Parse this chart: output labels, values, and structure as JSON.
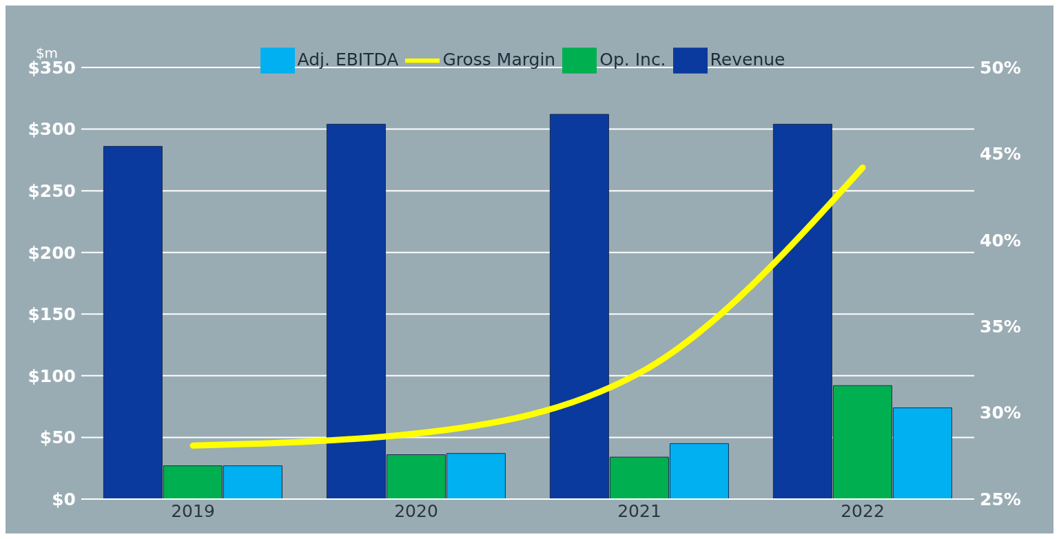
{
  "chart_data": {
    "type": "bar",
    "ylabel": "$m",
    "categories": [
      "2019",
      "2020",
      "2021",
      "2022"
    ],
    "series": [
      {
        "name": "Revenue",
        "color": "#0a3a9e",
        "values": [
          286,
          304,
          312,
          304
        ]
      },
      {
        "name": "Op. Inc.",
        "color": "#00b050",
        "values": [
          27,
          36,
          34,
          92
        ]
      },
      {
        "name": "Adj. EBITDA",
        "color": "#00b0f0",
        "values": [
          27,
          37,
          45,
          74
        ]
      },
      {
        "name": "Gross Margin",
        "type": "line",
        "axis": "y2",
        "color": "#ffff00",
        "values": [
          28.1,
          28.8,
          32.3,
          44.2
        ]
      }
    ],
    "ylim": [
      0,
      350
    ],
    "yticks": [
      {
        "value": 0,
        "label": "$0"
      },
      {
        "value": 50,
        "label": "$50"
      },
      {
        "value": 100,
        "label": "$100"
      },
      {
        "value": 150,
        "label": "$150"
      },
      {
        "value": 200,
        "label": "$200"
      },
      {
        "value": 250,
        "label": "$250"
      },
      {
        "value": 300,
        "label": "$300"
      },
      {
        "value": 350,
        "label": "$350"
      }
    ],
    "y2lim": [
      25,
      50
    ],
    "y2ticks": [
      {
        "value": 25,
        "label": "25%"
      },
      {
        "value": 30,
        "label": "30%"
      },
      {
        "value": 35,
        "label": "35%"
      },
      {
        "value": 40,
        "label": "40%"
      },
      {
        "value": 45,
        "label": "45%"
      },
      {
        "value": 50,
        "label": "50%"
      }
    ],
    "grid": "y",
    "legend": "top",
    "marker": "none",
    "line_style": "solid"
  }
}
